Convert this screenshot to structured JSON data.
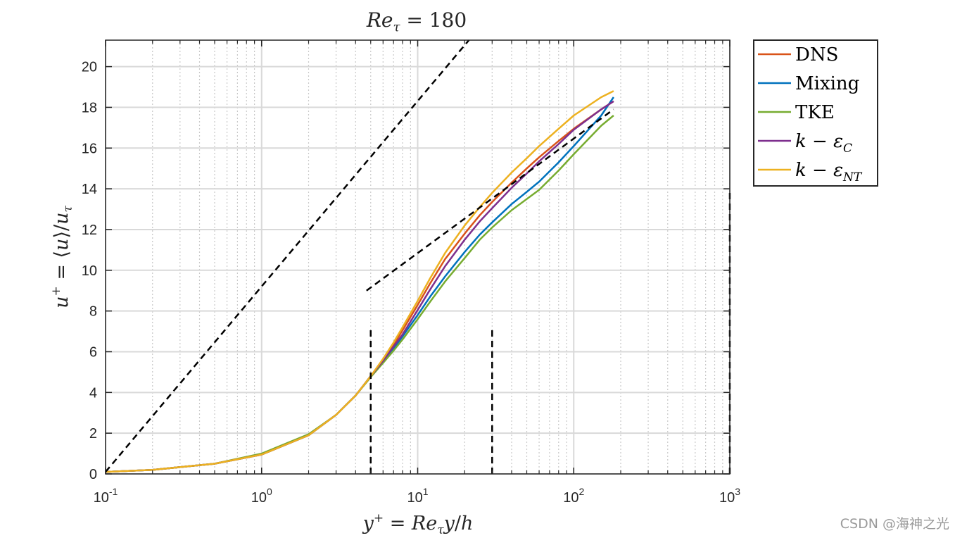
{
  "chart_data": {
    "type": "line",
    "title": "Re_τ = 180",
    "xlabel": "y+ = Re_τ y/h",
    "ylabel": "u+ = ⟨u⟩/u_τ",
    "xscale": "log",
    "xlim": [
      0.1,
      1000
    ],
    "ylim": [
      0,
      21.3
    ],
    "x_ticks": [
      {
        "base": "10",
        "exp": "-1",
        "value": 0.1
      },
      {
        "base": "10",
        "exp": "0",
        "value": 1
      },
      {
        "base": "10",
        "exp": "1",
        "value": 10
      },
      {
        "base": "10",
        "exp": "2",
        "value": 100
      },
      {
        "base": "10",
        "exp": "3",
        "value": 1000
      }
    ],
    "y_ticks": [
      0,
      2,
      4,
      6,
      8,
      10,
      12,
      14,
      16,
      18,
      20
    ],
    "grid": "major and minor",
    "legend_position": "outside-right",
    "series": [
      {
        "name": "DNS",
        "color": "#D95319",
        "x": [
          0.1,
          0.2,
          0.5,
          1,
          2,
          3,
          4,
          5,
          6,
          7,
          8,
          10,
          12,
          15,
          20,
          25,
          30,
          40,
          50,
          60,
          80,
          100,
          150,
          180
        ],
        "y": [
          0.1,
          0.2,
          0.5,
          0.95,
          1.9,
          2.9,
          3.85,
          4.8,
          5.6,
          6.35,
          7.05,
          8.3,
          9.35,
          10.55,
          11.8,
          12.7,
          13.35,
          14.3,
          15.0,
          15.55,
          16.35,
          16.95,
          17.9,
          18.3
        ]
      },
      {
        "name": "Mixing",
        "color": "#0072BD",
        "x": [
          0.1,
          0.2,
          0.5,
          1,
          2,
          3,
          4,
          5,
          6,
          7,
          8,
          10,
          12,
          15,
          20,
          25,
          30,
          40,
          50,
          60,
          80,
          100,
          150,
          180
        ],
        "y": [
          0.1,
          0.2,
          0.5,
          0.95,
          1.9,
          2.9,
          3.85,
          4.8,
          5.5,
          6.15,
          6.75,
          7.8,
          8.7,
          9.7,
          10.9,
          11.75,
          12.35,
          13.25,
          13.85,
          14.35,
          15.3,
          16.1,
          17.6,
          18.5
        ]
      },
      {
        "name": "TKE",
        "color": "#77AC30",
        "x": [
          0.1,
          0.2,
          0.5,
          1,
          2,
          3,
          4,
          5,
          6,
          7,
          8,
          10,
          12,
          15,
          20,
          25,
          30,
          40,
          50,
          60,
          80,
          100,
          150,
          180
        ],
        "y": [
          0.1,
          0.2,
          0.5,
          1.0,
          1.95,
          2.9,
          3.85,
          4.75,
          5.45,
          6.05,
          6.6,
          7.6,
          8.45,
          9.45,
          10.6,
          11.5,
          12.1,
          12.95,
          13.5,
          13.95,
          14.9,
          15.7,
          17.1,
          17.6
        ]
      },
      {
        "name": "k − ε_C",
        "color": "#7E2F8E",
        "x": [
          0.1,
          0.2,
          0.5,
          1,
          2,
          3,
          4,
          5,
          6,
          7,
          8,
          10,
          12,
          15,
          20,
          25,
          30,
          40,
          50,
          60,
          80,
          100,
          150,
          180
        ],
        "y": [
          0.1,
          0.2,
          0.5,
          0.95,
          1.9,
          2.9,
          3.85,
          4.8,
          5.55,
          6.25,
          6.85,
          8.05,
          9.05,
          10.2,
          11.5,
          12.4,
          13.05,
          14.05,
          14.75,
          15.35,
          16.2,
          16.9,
          17.9,
          18.3
        ]
      },
      {
        "name": "k − ε_NT",
        "color": "#EDB120",
        "x": [
          0.1,
          0.2,
          0.5,
          1,
          2,
          3,
          4,
          5,
          6,
          7,
          8,
          10,
          12,
          15,
          20,
          25,
          30,
          40,
          50,
          60,
          80,
          100,
          150,
          180
        ],
        "y": [
          0.1,
          0.2,
          0.5,
          0.95,
          1.9,
          2.9,
          3.85,
          4.8,
          5.65,
          6.45,
          7.2,
          8.5,
          9.6,
          10.85,
          12.2,
          13.1,
          13.8,
          14.8,
          15.5,
          16.1,
          16.95,
          17.6,
          18.5,
          18.8
        ]
      }
    ],
    "reference_lines": [
      {
        "name": "viscous sublayer u+ = y+",
        "color": "#000000",
        "style": "dashed",
        "x": [
          0.1,
          21.3
        ],
        "y": [
          0.1,
          21.3
        ]
      },
      {
        "name": "log law",
        "color": "#000000",
        "style": "dashed",
        "x": [
          4.7,
          180
        ],
        "y": [
          9.0,
          17.9
        ]
      },
      {
        "name": "y+ = 5 marker",
        "color": "#000000",
        "style": "dashed",
        "x": [
          5,
          5
        ],
        "y": [
          0,
          7.1
        ]
      },
      {
        "name": "y+ = 30 marker",
        "color": "#000000",
        "style": "dashed",
        "x": [
          30,
          30
        ],
        "y": [
          0,
          7.1
        ]
      },
      {
        "name": "y+ = 1000 marker",
        "color": "#000000",
        "style": "dashed",
        "x": [
          1000,
          1000
        ],
        "y": [
          0,
          13.9
        ]
      }
    ]
  },
  "legend": {
    "items": [
      {
        "label": "DNS",
        "color": "#D95319"
      },
      {
        "label": "Mixing",
        "color": "#0072BD"
      },
      {
        "label": "TKE",
        "color": "#77AC30"
      },
      {
        "label": "k − ε",
        "sub": "C",
        "color": "#7E2F8E"
      },
      {
        "label": "k − ε",
        "sub": "NT",
        "color": "#EDB120"
      }
    ]
  },
  "watermark": "CSDN @海神之光"
}
